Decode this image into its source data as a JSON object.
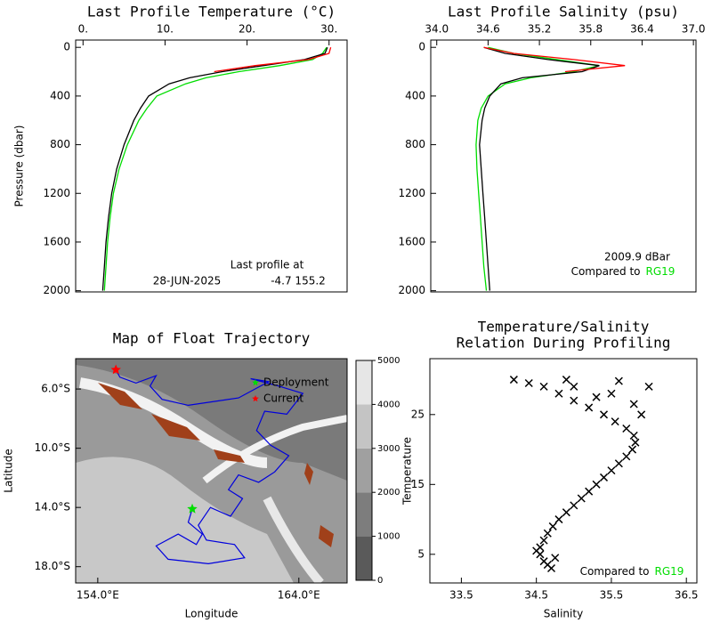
{
  "chart_data": [
    {
      "type": "profile",
      "title": "Last Profile Temperature (°C)",
      "ylabel": "Pressure (dbar)",
      "xlim": [
        -0.9,
        32.2
      ],
      "xticks": [
        {
          "value": 0,
          "label": "0."
        },
        {
          "value": 10,
          "label": "10."
        },
        {
          "value": 20,
          "label": "20."
        },
        {
          "value": 30,
          "label": "30."
        }
      ],
      "ylim": [
        -60,
        2010
      ],
      "yticks": [
        0,
        400,
        800,
        1200,
        1600,
        2000
      ],
      "y": [
        0,
        50,
        100,
        150,
        200,
        250,
        300,
        400,
        500,
        600,
        800,
        1000,
        1200,
        1400,
        1600,
        1800,
        2000
      ],
      "series": [
        {
          "color": "#00dd00",
          "values": [
            29.7,
            29.2,
            28,
            24,
            19,
            15,
            12.5,
            9,
            7.8,
            6.8,
            5.4,
            4.4,
            3.7,
            3.3,
            3.0,
            2.8,
            2.6
          ]
        },
        {
          "color": "#000000",
          "values": [
            29.8,
            29.5,
            27,
            22,
            17,
            13,
            10.5,
            8,
            7,
            6.2,
            5,
            4.1,
            3.5,
            3.1,
            2.8,
            2.6,
            2.4
          ]
        },
        {
          "color": "#ff0000",
          "values": [
            30.2,
            30,
            27.5,
            21,
            16,
            null,
            null,
            null,
            null,
            null,
            null,
            null,
            null,
            null,
            null,
            null,
            null
          ]
        }
      ],
      "annotations": [
        "Last profile at",
        "28-JUN-2025",
        "-4.7 155.2"
      ]
    },
    {
      "type": "profile",
      "title": "Last Profile Salinity (psu)",
      "xlim": [
        33.93,
        37.03
      ],
      "xticks": [
        {
          "value": 34,
          "label": "34.0"
        },
        34.6,
        35.2,
        35.8,
        36.4,
        {
          "value": 37,
          "label": "37.0"
        }
      ],
      "ylim": [
        -60,
        2010
      ],
      "yticks": [
        0,
        400,
        800,
        1200,
        1600,
        2000
      ],
      "y": [
        0,
        50,
        100,
        150,
        200,
        250,
        300,
        400,
        500,
        600,
        800,
        1000,
        1200,
        1400,
        1600,
        1800,
        2000
      ],
      "series": [
        {
          "color": "#00dd00",
          "values": [
            34.6,
            34.9,
            35.4,
            35.9,
            35.6,
            35.1,
            34.8,
            34.6,
            34.52,
            34.48,
            34.46,
            34.47,
            34.49,
            34.51,
            34.53,
            34.55,
            34.58
          ]
        },
        {
          "color": "#000000",
          "values": [
            34.55,
            34.8,
            35.3,
            35.9,
            35.7,
            35.0,
            34.75,
            34.62,
            34.56,
            34.53,
            34.5,
            34.52,
            34.54,
            34.56,
            34.58,
            34.6,
            34.62
          ]
        },
        {
          "color": "#ff0000",
          "values": [
            34.55,
            34.9,
            35.6,
            36.2,
            35.5,
            null,
            null,
            null,
            null,
            null,
            null,
            null,
            null,
            null,
            null,
            null,
            null
          ]
        }
      ],
      "annotations": [
        "2009.9 dBar",
        "Compared to"
      ],
      "reference": "RG19",
      "reference_color": "#00dd00"
    },
    {
      "type": "map",
      "title": "Map of Float Trajectory",
      "xlabel": "Longitude",
      "ylabel": "Latitude",
      "xlim": [
        152.9,
        166.4
      ],
      "ylim": [
        -19.1,
        -3.95
      ],
      "xticks": [
        {
          "value": 154,
          "label": "154.0°E"
        },
        {
          "value": 164,
          "label": "164.0°E"
        }
      ],
      "yticks": [
        {
          "value": -6,
          "label": "6.0°S"
        },
        {
          "value": -10,
          "label": "10.0°S"
        },
        {
          "value": -14,
          "label": "14.0°S"
        },
        {
          "value": -18,
          "label": "18.0°S"
        }
      ],
      "track": {
        "color": "#0000dd",
        "lon": [
          158.7,
          158.5,
          159.2,
          158.9,
          158.0,
          156.9,
          157.5,
          159.5,
          161.3,
          160.8,
          159.4,
          159.0,
          159.6,
          160.6,
          161.2,
          160.5,
          161.0,
          162.0,
          162.8,
          163.5,
          162.6,
          161.9,
          162.3,
          163.4,
          164.2,
          163.0,
          161.6,
          162.5,
          161.0,
          158.5,
          157.2,
          156.6,
          156.9,
          155.9,
          155.1,
          154.9
        ],
        "lat": [
          -14.1,
          -15.0,
          -15.8,
          -16.5,
          -15.8,
          -16.6,
          -17.5,
          -17.8,
          -17.4,
          -16.5,
          -16.2,
          -15.2,
          -14.0,
          -14.6,
          -13.4,
          -12.8,
          -11.8,
          -12.3,
          -11.6,
          -10.5,
          -9.8,
          -8.8,
          -7.5,
          -7.7,
          -6.3,
          -5.8,
          -5.3,
          -5.5,
          -6.6,
          -7.1,
          -6.7,
          -5.8,
          -5.1,
          -5.6,
          -5.2,
          -4.7
        ]
      },
      "markers": [
        {
          "name": "Deployment",
          "color": "#00dd00",
          "lon": 158.7,
          "lat": -14.1
        },
        {
          "name": "Current",
          "color": "#ff0000",
          "lon": 154.9,
          "lat": -4.7
        }
      ],
      "colorbar": {
        "ticks": [
          0,
          1000,
          2000,
          3000,
          4000,
          5000
        ],
        "colors": [
          "#5a5a5a",
          "#7d7d7d",
          "#a0a0a0",
          "#c4c4c4",
          "#e6e6e6"
        ]
      }
    },
    {
      "type": "scatter",
      "title": [
        "Temperature/Salinity",
        "Relation During Profiling"
      ],
      "xlabel": "Salinity",
      "ylabel": "Temperature",
      "xlim": [
        33.08,
        36.64
      ],
      "ylim": [
        0.9,
        33.0
      ],
      "xticks": [
        33.5,
        34.5,
        35.5,
        36.5
      ],
      "yticks": [
        5,
        15,
        25
      ],
      "series": [
        {
          "color": "#000000",
          "x": [
            34.7,
            34.6,
            34.55,
            34.55,
            34.6,
            34.65,
            34.72,
            34.8,
            34.9,
            35.0,
            35.1,
            35.2,
            35.3,
            35.4,
            35.5,
            35.6,
            35.7,
            35.78,
            35.82,
            35.8,
            35.7,
            35.55,
            35.4,
            35.2,
            35.0,
            34.8,
            34.6,
            34.4,
            34.2,
            35.0,
            35.5,
            36.0,
            35.8,
            35.3,
            35.9,
            34.9,
            35.6,
            34.5,
            34.65,
            34.75
          ],
          "values": [
            3,
            4,
            5,
            6,
            7,
            8,
            9,
            10,
            11,
            12,
            13,
            14,
            15,
            16,
            17,
            18,
            19,
            20,
            21,
            22,
            23,
            24,
            25,
            26,
            27,
            28,
            29,
            29.5,
            30,
            29,
            28,
            29,
            26.5,
            27.5,
            25,
            30,
            29.8,
            5.5,
            3.5,
            4.5
          ]
        }
      ],
      "annotations": [
        "Compared to"
      ],
      "reference": "RG19",
      "reference_color": "#00dd00"
    }
  ]
}
